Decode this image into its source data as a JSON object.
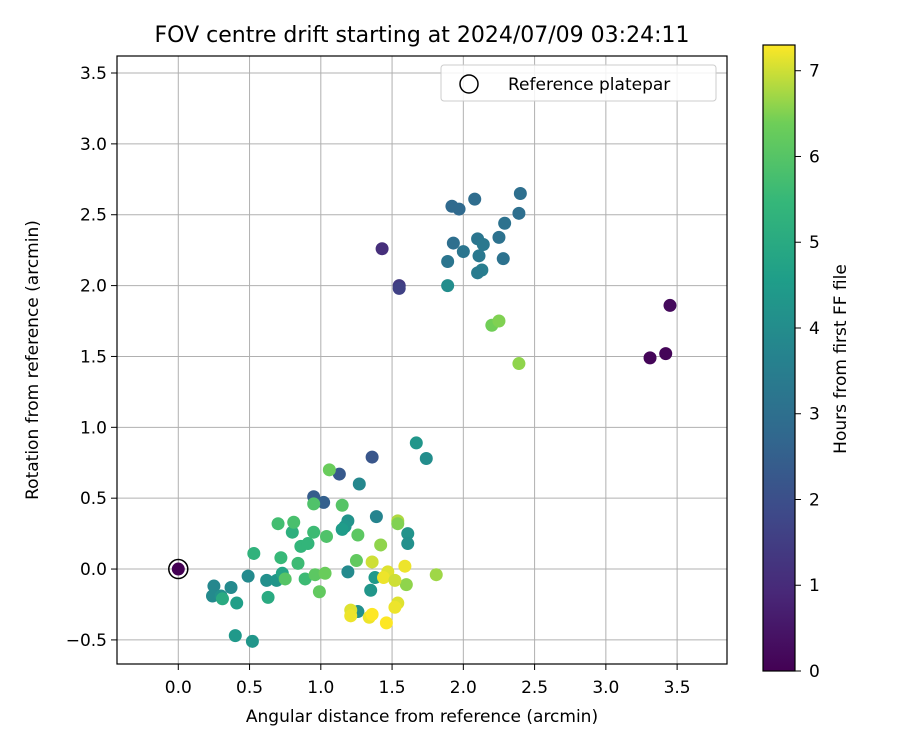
{
  "chart_data": {
    "type": "scatter",
    "title": "FOV centre drift starting at 2024/07/09 03:24:11",
    "xlabel": "Angular distance from reference (arcmin)",
    "ylabel": "Rotation from reference (arcmin)",
    "xlim": [
      -0.43,
      3.85
    ],
    "ylim": [
      -0.67,
      3.62
    ],
    "xticks": [
      0.0,
      0.5,
      1.0,
      1.5,
      2.0,
      2.5,
      3.0,
      3.5
    ],
    "xtick_labels": [
      "0.0",
      "0.5",
      "1.0",
      "1.5",
      "2.0",
      "2.5",
      "3.0",
      "3.5"
    ],
    "yticks": [
      -0.5,
      0.0,
      0.5,
      1.0,
      1.5,
      2.0,
      2.5,
      3.0,
      3.5
    ],
    "ytick_labels": [
      "−0.5",
      "0.0",
      "0.5",
      "1.0",
      "1.5",
      "2.0",
      "2.5",
      "3.0",
      "3.5"
    ],
    "grid": true,
    "legend": {
      "label": "Reference platepar",
      "position": "upper right"
    },
    "reference_point": {
      "x": 0.0,
      "y": 0.0,
      "c": 0.0
    },
    "colorbar": {
      "label": "Hours from first FF file",
      "colormap": "viridis",
      "range": [
        0,
        7.3
      ],
      "ticks": [
        0,
        1,
        2,
        3,
        4,
        5,
        6,
        7
      ],
      "tick_labels": [
        "0",
        "1",
        "2",
        "3",
        "4",
        "5",
        "6",
        "7"
      ]
    },
    "points": [
      {
        "x": 3.42,
        "y": 1.52,
        "c": 0.1
      },
      {
        "x": 3.31,
        "y": 1.49,
        "c": 0.1
      },
      {
        "x": 3.45,
        "y": 1.86,
        "c": 0.2
      },
      {
        "x": 1.43,
        "y": 2.26,
        "c": 1.1
      },
      {
        "x": 1.55,
        "y": 2.0,
        "c": 1.4
      },
      {
        "x": 1.55,
        "y": 1.98,
        "c": 1.6
      },
      {
        "x": 1.36,
        "y": 0.79,
        "c": 2.2
      },
      {
        "x": 1.13,
        "y": 0.67,
        "c": 2.3
      },
      {
        "x": 0.95,
        "y": 0.51,
        "c": 2.4
      },
      {
        "x": 1.02,
        "y": 0.47,
        "c": 2.5
      },
      {
        "x": 1.92,
        "y": 2.56,
        "c": 2.8
      },
      {
        "x": 1.97,
        "y": 2.54,
        "c": 2.8
      },
      {
        "x": 2.08,
        "y": 2.61,
        "c": 2.9
      },
      {
        "x": 2.4,
        "y": 2.65,
        "c": 3.0
      },
      {
        "x": 2.39,
        "y": 2.51,
        "c": 3.0
      },
      {
        "x": 2.29,
        "y": 2.44,
        "c": 3.1
      },
      {
        "x": 2.25,
        "y": 2.34,
        "c": 3.1
      },
      {
        "x": 2.1,
        "y": 2.33,
        "c": 3.2
      },
      {
        "x": 1.93,
        "y": 2.3,
        "c": 3.0
      },
      {
        "x": 2.14,
        "y": 2.29,
        "c": 3.3
      },
      {
        "x": 2.0,
        "y": 2.24,
        "c": 3.2
      },
      {
        "x": 2.11,
        "y": 2.21,
        "c": 3.3
      },
      {
        "x": 2.28,
        "y": 2.19,
        "c": 3.1
      },
      {
        "x": 1.89,
        "y": 2.17,
        "c": 3.2
      },
      {
        "x": 2.13,
        "y": 2.11,
        "c": 3.5
      },
      {
        "x": 2.1,
        "y": 2.09,
        "c": 3.4
      },
      {
        "x": 1.89,
        "y": 2.0,
        "c": 4.0
      },
      {
        "x": 1.67,
        "y": 0.89,
        "c": 4.3
      },
      {
        "x": 1.74,
        "y": 0.78,
        "c": 4.0
      },
      {
        "x": 1.27,
        "y": 0.6,
        "c": 3.8
      },
      {
        "x": 1.39,
        "y": 0.37,
        "c": 3.7
      },
      {
        "x": 1.61,
        "y": 0.25,
        "c": 4.2
      },
      {
        "x": 1.61,
        "y": 0.18,
        "c": 4.1
      },
      {
        "x": 1.19,
        "y": 0.34,
        "c": 4.2
      },
      {
        "x": 1.17,
        "y": 0.3,
        "c": 4.3
      },
      {
        "x": 1.15,
        "y": 0.28,
        "c": 4.5
      },
      {
        "x": 1.19,
        "y": -0.02,
        "c": 3.9
      },
      {
        "x": 1.35,
        "y": -0.15,
        "c": 4.3
      },
      {
        "x": 1.38,
        "y": -0.06,
        "c": 4.4
      },
      {
        "x": 1.26,
        "y": -0.3,
        "c": 4.1
      },
      {
        "x": 0.25,
        "y": -0.12,
        "c": 3.8
      },
      {
        "x": 0.37,
        "y": -0.13,
        "c": 3.9
      },
      {
        "x": 0.24,
        "y": -0.19,
        "c": 3.9
      },
      {
        "x": 0.3,
        "y": -0.19,
        "c": 4.1
      },
      {
        "x": 0.49,
        "y": -0.05,
        "c": 3.9
      },
      {
        "x": 0.62,
        "y": -0.08,
        "c": 4.1
      },
      {
        "x": 0.69,
        "y": -0.08,
        "c": 4.3
      },
      {
        "x": 0.41,
        "y": -0.24,
        "c": 4.6
      },
      {
        "x": 0.4,
        "y": -0.47,
        "c": 4.4
      },
      {
        "x": 0.52,
        "y": -0.51,
        "c": 4.3
      },
      {
        "x": 0.31,
        "y": -0.21,
        "c": 5.0
      },
      {
        "x": 0.63,
        "y": -0.2,
        "c": 5.0
      },
      {
        "x": 0.73,
        "y": -0.03,
        "c": 4.8
      },
      {
        "x": 0.53,
        "y": 0.11,
        "c": 5.3
      },
      {
        "x": 0.72,
        "y": 0.08,
        "c": 5.5
      },
      {
        "x": 0.8,
        "y": 0.26,
        "c": 5.2
      },
      {
        "x": 0.86,
        "y": 0.16,
        "c": 5.4
      },
      {
        "x": 0.91,
        "y": 0.18,
        "c": 5.4
      },
      {
        "x": 0.84,
        "y": 0.04,
        "c": 5.6
      },
      {
        "x": 0.89,
        "y": -0.07,
        "c": 5.6
      },
      {
        "x": 0.7,
        "y": 0.32,
        "c": 5.7
      },
      {
        "x": 0.81,
        "y": 0.33,
        "c": 5.8
      },
      {
        "x": 0.95,
        "y": 0.26,
        "c": 5.6
      },
      {
        "x": 1.04,
        "y": 0.23,
        "c": 5.9
      },
      {
        "x": 0.95,
        "y": 0.46,
        "c": 5.9
      },
      {
        "x": 1.15,
        "y": 0.45,
        "c": 6.0
      },
      {
        "x": 1.26,
        "y": 0.24,
        "c": 6.1
      },
      {
        "x": 1.06,
        "y": 0.7,
        "c": 6.3
      },
      {
        "x": 0.75,
        "y": -0.07,
        "c": 6.0
      },
      {
        "x": 0.96,
        "y": -0.04,
        "c": 6.1
      },
      {
        "x": 1.03,
        "y": -0.03,
        "c": 6.3
      },
      {
        "x": 0.99,
        "y": -0.16,
        "c": 6.2
      },
      {
        "x": 1.25,
        "y": 0.06,
        "c": 6.2
      },
      {
        "x": 1.42,
        "y": 0.17,
        "c": 6.6
      },
      {
        "x": 1.54,
        "y": 0.34,
        "c": 6.8
      },
      {
        "x": 1.54,
        "y": 0.32,
        "c": 6.5
      },
      {
        "x": 1.6,
        "y": -0.11,
        "c": 6.6
      },
      {
        "x": 1.81,
        "y": -0.04,
        "c": 6.7
      },
      {
        "x": 2.2,
        "y": 1.72,
        "c": 6.4
      },
      {
        "x": 2.25,
        "y": 1.75,
        "c": 6.5
      },
      {
        "x": 2.39,
        "y": 1.45,
        "c": 6.6
      },
      {
        "x": 1.36,
        "y": 0.05,
        "c": 7.0
      },
      {
        "x": 1.47,
        "y": -0.02,
        "c": 7.1
      },
      {
        "x": 1.44,
        "y": -0.06,
        "c": 7.2
      },
      {
        "x": 1.52,
        "y": -0.08,
        "c": 7.0
      },
      {
        "x": 1.59,
        "y": 0.02,
        "c": 7.2
      },
      {
        "x": 1.54,
        "y": -0.24,
        "c": 7.1
      },
      {
        "x": 1.52,
        "y": -0.27,
        "c": 7.2
      },
      {
        "x": 1.21,
        "y": -0.29,
        "c": 7.1
      },
      {
        "x": 1.21,
        "y": -0.33,
        "c": 7.2
      },
      {
        "x": 1.34,
        "y": -0.34,
        "c": 7.2
      },
      {
        "x": 1.36,
        "y": -0.32,
        "c": 7.3
      },
      {
        "x": 1.46,
        "y": -0.38,
        "c": 7.3
      }
    ]
  }
}
